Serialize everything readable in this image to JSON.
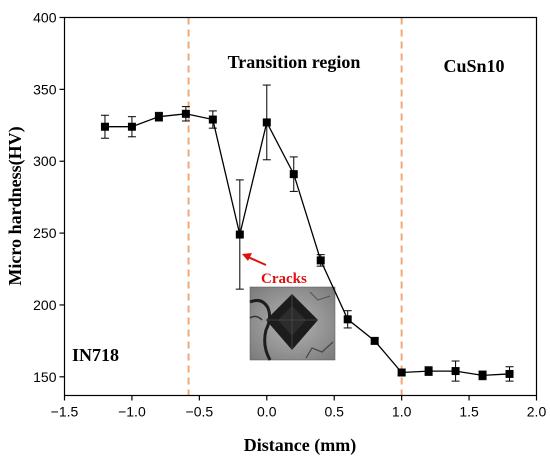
{
  "chart_data": {
    "type": "line",
    "xlabel": "Distance (mm)",
    "ylabel": "Micro hardness(HV)",
    "xlim": [
      -1.5,
      2.0
    ],
    "ylim": [
      137,
      400
    ],
    "xticks": [
      -1.5,
      -1.0,
      -0.5,
      0.0,
      0.5,
      1.0,
      1.5,
      2.0
    ],
    "xtick_labels": [
      "−1.5",
      "−1.0",
      "−0.5",
      "0.0",
      "0.5",
      "1.0",
      "1.5",
      "2.0"
    ],
    "yticks": [
      150,
      200,
      250,
      300,
      350,
      400
    ],
    "ytick_labels": [
      "150",
      "200",
      "250",
      "300",
      "350",
      "400"
    ],
    "series": [
      {
        "x": [
          -1.2,
          -1.0,
          -0.8,
          -0.6,
          -0.4,
          -0.2,
          0.0,
          0.2,
          0.4,
          0.6,
          0.8,
          1.0,
          1.2,
          1.4,
          1.6,
          1.8
        ],
        "y": [
          324,
          324,
          331,
          333,
          329,
          249,
          327,
          291,
          231,
          190,
          175,
          153,
          154,
          154,
          151,
          152
        ],
        "error": [
          8,
          7,
          3,
          5,
          6,
          38,
          26,
          12,
          4,
          6,
          2,
          2,
          3,
          7,
          3,
          5
        ],
        "color": "#000000",
        "marker": "square"
      }
    ],
    "reference_lines": {
      "x": [
        -0.58,
        1.0
      ],
      "color": "#f0a878",
      "style": "dashed"
    },
    "region_labels": [
      "IN718",
      "Transition region",
      "CuSn10"
    ],
    "annotation": {
      "text": "Cracks",
      "color": "#e01010",
      "points_to": {
        "x": -0.2,
        "y": 226
      }
    },
    "inset_image": "micro-indentation-with-cracks",
    "grid": false,
    "legend": false
  }
}
